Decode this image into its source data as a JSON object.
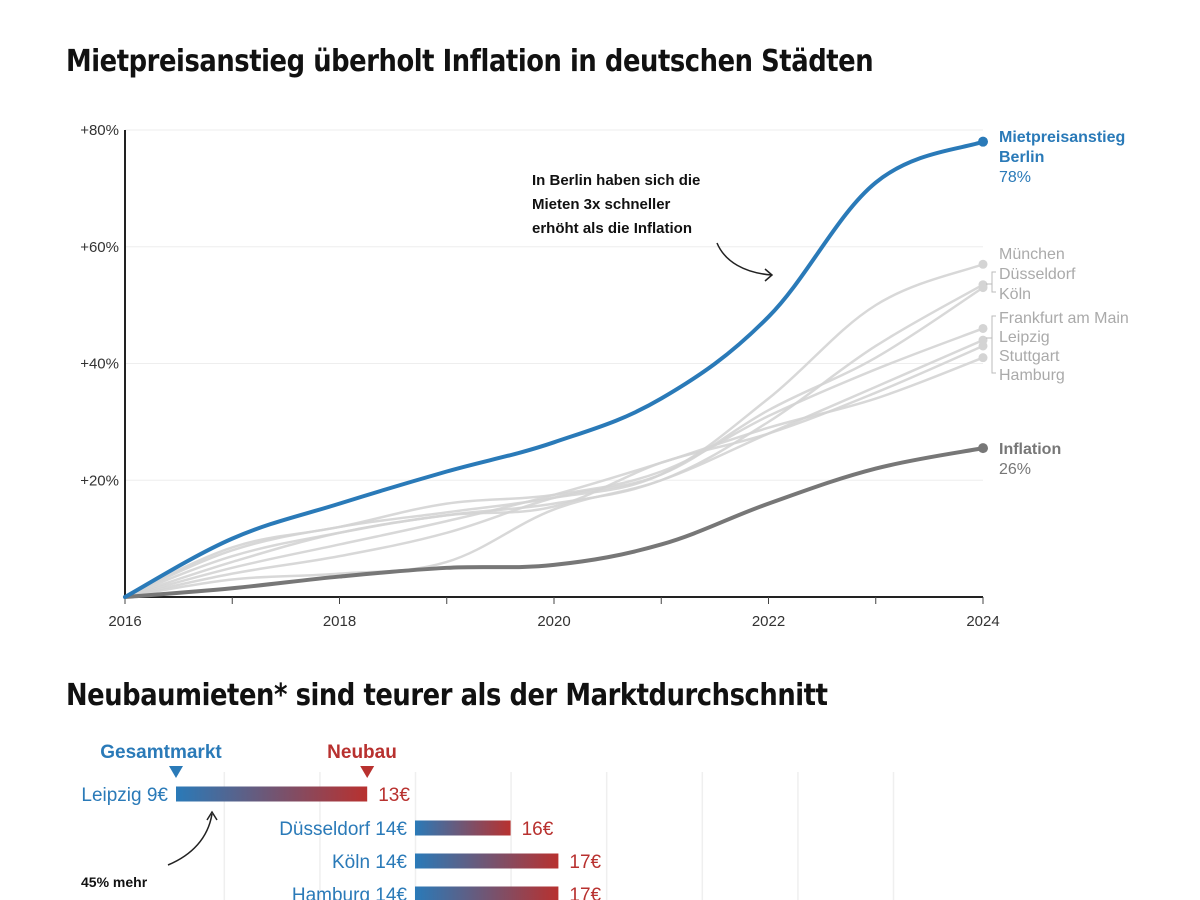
{
  "titles": {
    "line_chart": "Mietpreisanstieg überholt Inflation in deutschen Städten",
    "bar_chart": "Neubaumieten* sind teurer als der Marktdurchschnitt"
  },
  "colors": {
    "berlin": "#2a7ab8",
    "inflation": "#777777",
    "cities": "#d4d4d4",
    "city_label": "#aaaaaa",
    "gesamtmarkt": "#2a7ab8",
    "neubau": "#b8312f"
  },
  "chart_data": [
    {
      "type": "line",
      "title": "Mietpreisanstieg überholt Inflation in deutschen Städten",
      "xlabel": "",
      "ylabel": "",
      "x": [
        2016,
        2017,
        2018,
        2019,
        2020,
        2021,
        2022,
        2023,
        2024
      ],
      "xlim": [
        2016,
        2024
      ],
      "ylim": [
        0,
        80
      ],
      "x_ticks": [
        "2016",
        "2018",
        "2020",
        "2022",
        "2024"
      ],
      "y_ticks": [
        "+20%",
        "+40%",
        "+60%",
        "+80%"
      ],
      "y_tick_values": [
        20,
        40,
        60,
        80
      ],
      "grid": true,
      "legend": "end-labels-right",
      "series": [
        {
          "name": "Mietpreisanstieg Berlin",
          "label_lines": [
            "Mietpreisanstieg",
            "Berlin"
          ],
          "value_label": "78%",
          "role": "highlight",
          "values": [
            0,
            10,
            16,
            21.5,
            26.5,
            34,
            48,
            71,
            78
          ]
        },
        {
          "name": "München",
          "role": "city",
          "values": [
            0,
            8,
            12,
            14.5,
            17,
            21,
            34,
            50,
            57
          ]
        },
        {
          "name": "Düsseldorf",
          "role": "city",
          "values": [
            0,
            6,
            11,
            14,
            16,
            20,
            30,
            43,
            53.5
          ]
        },
        {
          "name": "Köln",
          "role": "city",
          "values": [
            0,
            4,
            7,
            11,
            17,
            21,
            32,
            41,
            53
          ]
        },
        {
          "name": "Frankfurt am Main",
          "role": "city",
          "values": [
            0,
            8.5,
            12,
            16,
            17.5,
            21.5,
            31,
            39,
            46
          ]
        },
        {
          "name": "Leipzig",
          "role": "city",
          "values": [
            0,
            3,
            4,
            6,
            15,
            20,
            28,
            36,
            44
          ]
        },
        {
          "name": "Stuttgart",
          "role": "city",
          "values": [
            0,
            7,
            11,
            14,
            15.5,
            23,
            28,
            35,
            43
          ]
        },
        {
          "name": "Hamburg",
          "role": "city",
          "values": [
            0,
            5,
            9,
            13,
            17.5,
            23,
            29,
            34,
            41
          ]
        },
        {
          "name": "Inflation",
          "label_lines": [
            "Inflation"
          ],
          "value_label": "26%",
          "role": "inflation",
          "values": [
            0,
            1.5,
            3.5,
            5,
            5.5,
            9,
            16,
            22,
            25.5
          ]
        }
      ],
      "annotation": "In Berlin haben sich die Mieten 3x schneller erhöht als die Inflation",
      "annotation_lines": [
        "In Berlin haben sich die",
        "Mieten 3x schneller",
        "erhöht als die Inflation"
      ]
    },
    {
      "type": "bar",
      "title": "Neubaumieten* sind teurer als der Marktdurchschnitt",
      "legend_labels": {
        "start": "Gesamtmarkt",
        "end": "Neubau"
      },
      "unit": "€",
      "categories": [
        "Leipzig",
        "Düsseldorf",
        "Köln",
        "Hamburg"
      ],
      "series": [
        {
          "name": "Gesamtmarkt",
          "values": [
            9,
            14,
            14,
            14
          ]
        },
        {
          "name": "Neubau",
          "values": [
            13,
            16,
            17,
            17
          ]
        }
      ],
      "start_labels": [
        "Leipzig 9€",
        "Düsseldorf 14€",
        "Köln 14€",
        "Hamburg 14€"
      ],
      "end_labels": [
        "13€",
        "16€",
        "17€",
        "17€"
      ],
      "annotation": "45% mehr",
      "xlim": [
        6,
        22
      ]
    }
  ]
}
